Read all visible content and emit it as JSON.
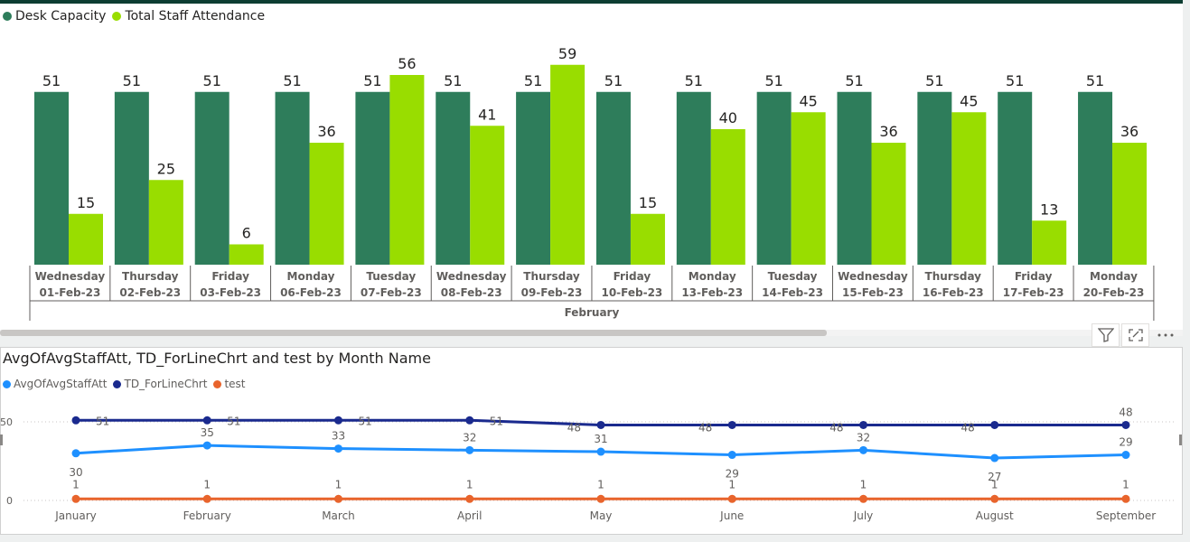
{
  "top_chart": {
    "legend": [
      {
        "name": "Desk Capacity",
        "color": "#2e7d5b"
      },
      {
        "name": "Total Staff Attendance",
        "color": "#99dd00"
      }
    ]
  },
  "bottom_chart": {
    "title": "AvgOfAvgStaffAtt, TD_ForLineChrt and test by Month Name",
    "legend": [
      {
        "name": "AvgOfAvgStaffAtt",
        "color": "#1e90ff"
      },
      {
        "name": "TD_ForLineChrt",
        "color": "#1a2a8e"
      },
      {
        "name": "test",
        "color": "#e8642c"
      }
    ]
  },
  "toolbar": {
    "filter_icon": "filter-icon",
    "focus_icon": "focus-mode-icon",
    "more_icon": "more-options-icon"
  },
  "chart_data": [
    {
      "type": "bar",
      "categories": [
        {
          "day": "Wednesday",
          "date": "01-Feb-23"
        },
        {
          "day": "Thursday",
          "date": "02-Feb-23"
        },
        {
          "day": "Friday",
          "date": "03-Feb-23"
        },
        {
          "day": "Monday",
          "date": "06-Feb-23"
        },
        {
          "day": "Tuesday",
          "date": "07-Feb-23"
        },
        {
          "day": "Wednesday",
          "date": "08-Feb-23"
        },
        {
          "day": "Thursday",
          "date": "09-Feb-23"
        },
        {
          "day": "Friday",
          "date": "10-Feb-23"
        },
        {
          "day": "Monday",
          "date": "13-Feb-23"
        },
        {
          "day": "Tuesday",
          "date": "14-Feb-23"
        },
        {
          "day": "Wednesday",
          "date": "15-Feb-23"
        },
        {
          "day": "Thursday",
          "date": "16-Feb-23"
        },
        {
          "day": "Friday",
          "date": "17-Feb-23"
        },
        {
          "day": "Monday",
          "date": "20-Feb-23"
        }
      ],
      "group_label": "February",
      "series": [
        {
          "name": "Desk Capacity",
          "color": "#2e7d5b",
          "values": [
            51,
            51,
            51,
            51,
            51,
            51,
            51,
            51,
            51,
            51,
            51,
            51,
            51,
            51
          ]
        },
        {
          "name": "Total Staff Attendance",
          "color": "#99dd00",
          "values": [
            15,
            25,
            6,
            36,
            56,
            41,
            59,
            15,
            40,
            45,
            36,
            45,
            13,
            36
          ]
        }
      ],
      "ylim": [
        0,
        59
      ],
      "data_labels": true
    },
    {
      "type": "line",
      "title": "AvgOfAvgStaffAtt, TD_ForLineChrt and test by Month Name",
      "categories": [
        "January",
        "February",
        "March",
        "April",
        "May",
        "June",
        "July",
        "August",
        "September"
      ],
      "yticks": [
        0,
        50
      ],
      "ylim": [
        0,
        52
      ],
      "grid": true,
      "series": [
        {
          "name": "TD_ForLineChrt",
          "color": "#1a2a8e",
          "values": [
            51,
            51,
            51,
            51,
            48,
            48,
            48,
            48,
            48
          ]
        },
        {
          "name": "AvgOfAvgStaffAtt",
          "color": "#1e90ff",
          "values": [
            30,
            35,
            33,
            32,
            31,
            29,
            32,
            27,
            29
          ]
        },
        {
          "name": "test",
          "color": "#e8642c",
          "values": [
            1,
            1,
            1,
            1,
            1,
            1,
            1,
            1,
            1
          ]
        }
      ]
    }
  ]
}
